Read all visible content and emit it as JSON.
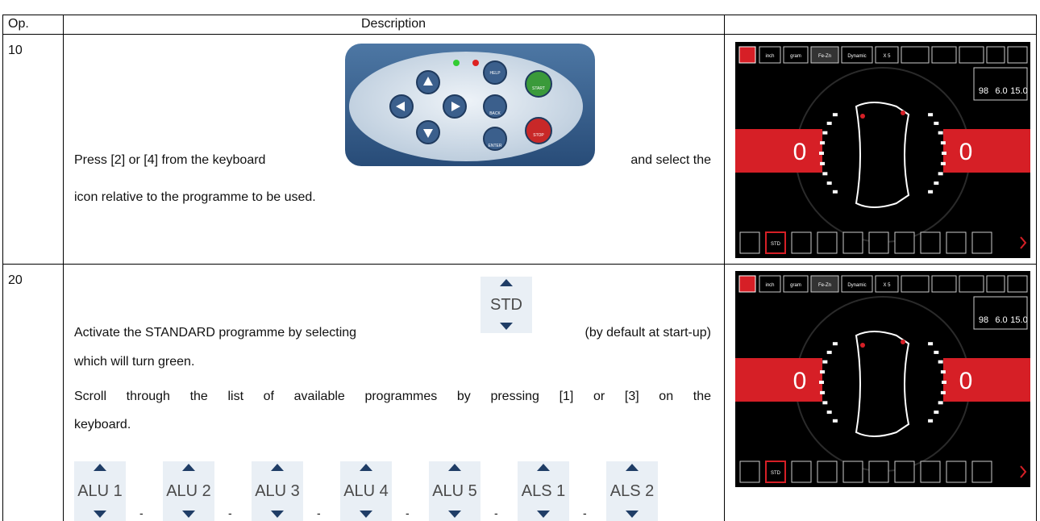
{
  "header": {
    "op": "Op.",
    "description": "Description"
  },
  "rows": [
    {
      "op": "10",
      "line1_left": "Press [2] or [4] from the keyboard",
      "line1_right": "and select the",
      "line2": "icon relative to the programme to be used.",
      "keypad": {
        "help": "HELP",
        "start": "START",
        "back": "BACK",
        "enter": "ENTER",
        "stop": "STOP"
      },
      "screen": {
        "top_labels": [
          "inch",
          "gram",
          "Fe-Zn",
          "Dynamic",
          "X 5"
        ],
        "dims": [
          "98",
          "6.0",
          "15.0"
        ],
        "left_value": "0",
        "right_value": "0",
        "program": "STD"
      }
    },
    {
      "op": "20",
      "line1_left": "Activate the STANDARD programme by selecting",
      "std_button": "STD",
      "line1_right": "(by default at start-up)",
      "line2": "which will turn green.",
      "scroll_line1": "Scroll through the list of available programmes by pressing [1] or [3] on the",
      "scroll_line2": "keyboard.",
      "programs": [
        "ALU 1",
        "ALU 2",
        "ALU 3",
        "ALU 4",
        "ALU 5",
        "ALS 1",
        "ALS 2"
      ],
      "separator": "-",
      "screen": {
        "top_labels": [
          "inch",
          "gram",
          "Fe-Zn",
          "Dynamic",
          "X 5"
        ],
        "dims": [
          "98",
          "6.0",
          "15.0"
        ],
        "left_value": "0",
        "right_value": "0",
        "program": "STD"
      }
    }
  ]
}
